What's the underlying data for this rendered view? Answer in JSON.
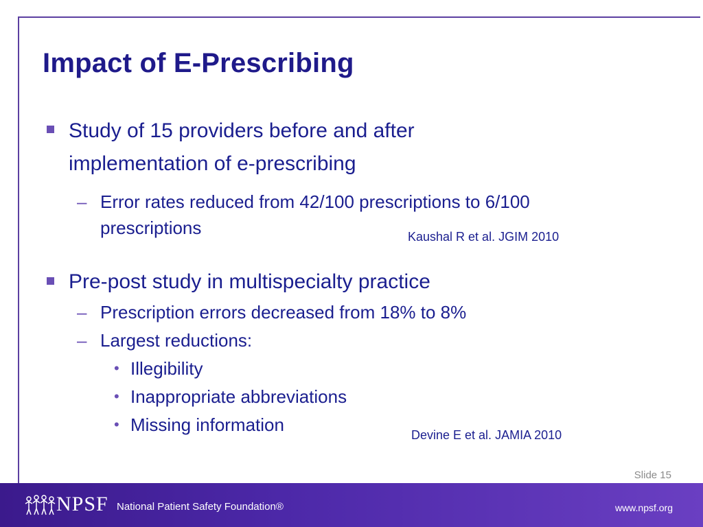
{
  "slide": {
    "title": "Impact of E-Prescribing",
    "bullets": [
      {
        "line1": "Study of 15 providers before and after",
        "line2": "implementation of  e-prescribing",
        "sub": [
          {
            "line1": "Error rates reduced from 42/100 prescriptions to 6/100",
            "line2": "prescriptions"
          }
        ],
        "reference": "Kaushal R et al. JGIM 2010"
      },
      {
        "line1": "Pre-post study in multispecialty practice",
        "sub": [
          {
            "line1": "Prescription errors decreased from 18% to 8%"
          },
          {
            "line1": "Largest reductions:"
          }
        ],
        "subsub": [
          "Illegibility",
          "Inappropriate abbreviations",
          "Missing information"
        ],
        "reference": "Devine E et al. JAMIA 2010"
      }
    ],
    "slide_number": "Slide 15"
  },
  "footer": {
    "logo_text": "NPSF",
    "org_name": "National Patient Safety Foundation®",
    "url": "www.npsf.org"
  },
  "colors": {
    "title": "#1f1a8a",
    "text": "#1a1e8f",
    "bullet": "#6a4fb5",
    "footer_start": "#3b1a8c",
    "footer_end": "#6a3fc2"
  },
  "icons": {
    "bullet_level1": "square-bullet-icon",
    "bullet_level2": "dash-bullet-icon",
    "bullet_level3": "dot-bullet-icon",
    "logo": "npsf-figures-logo-icon"
  }
}
